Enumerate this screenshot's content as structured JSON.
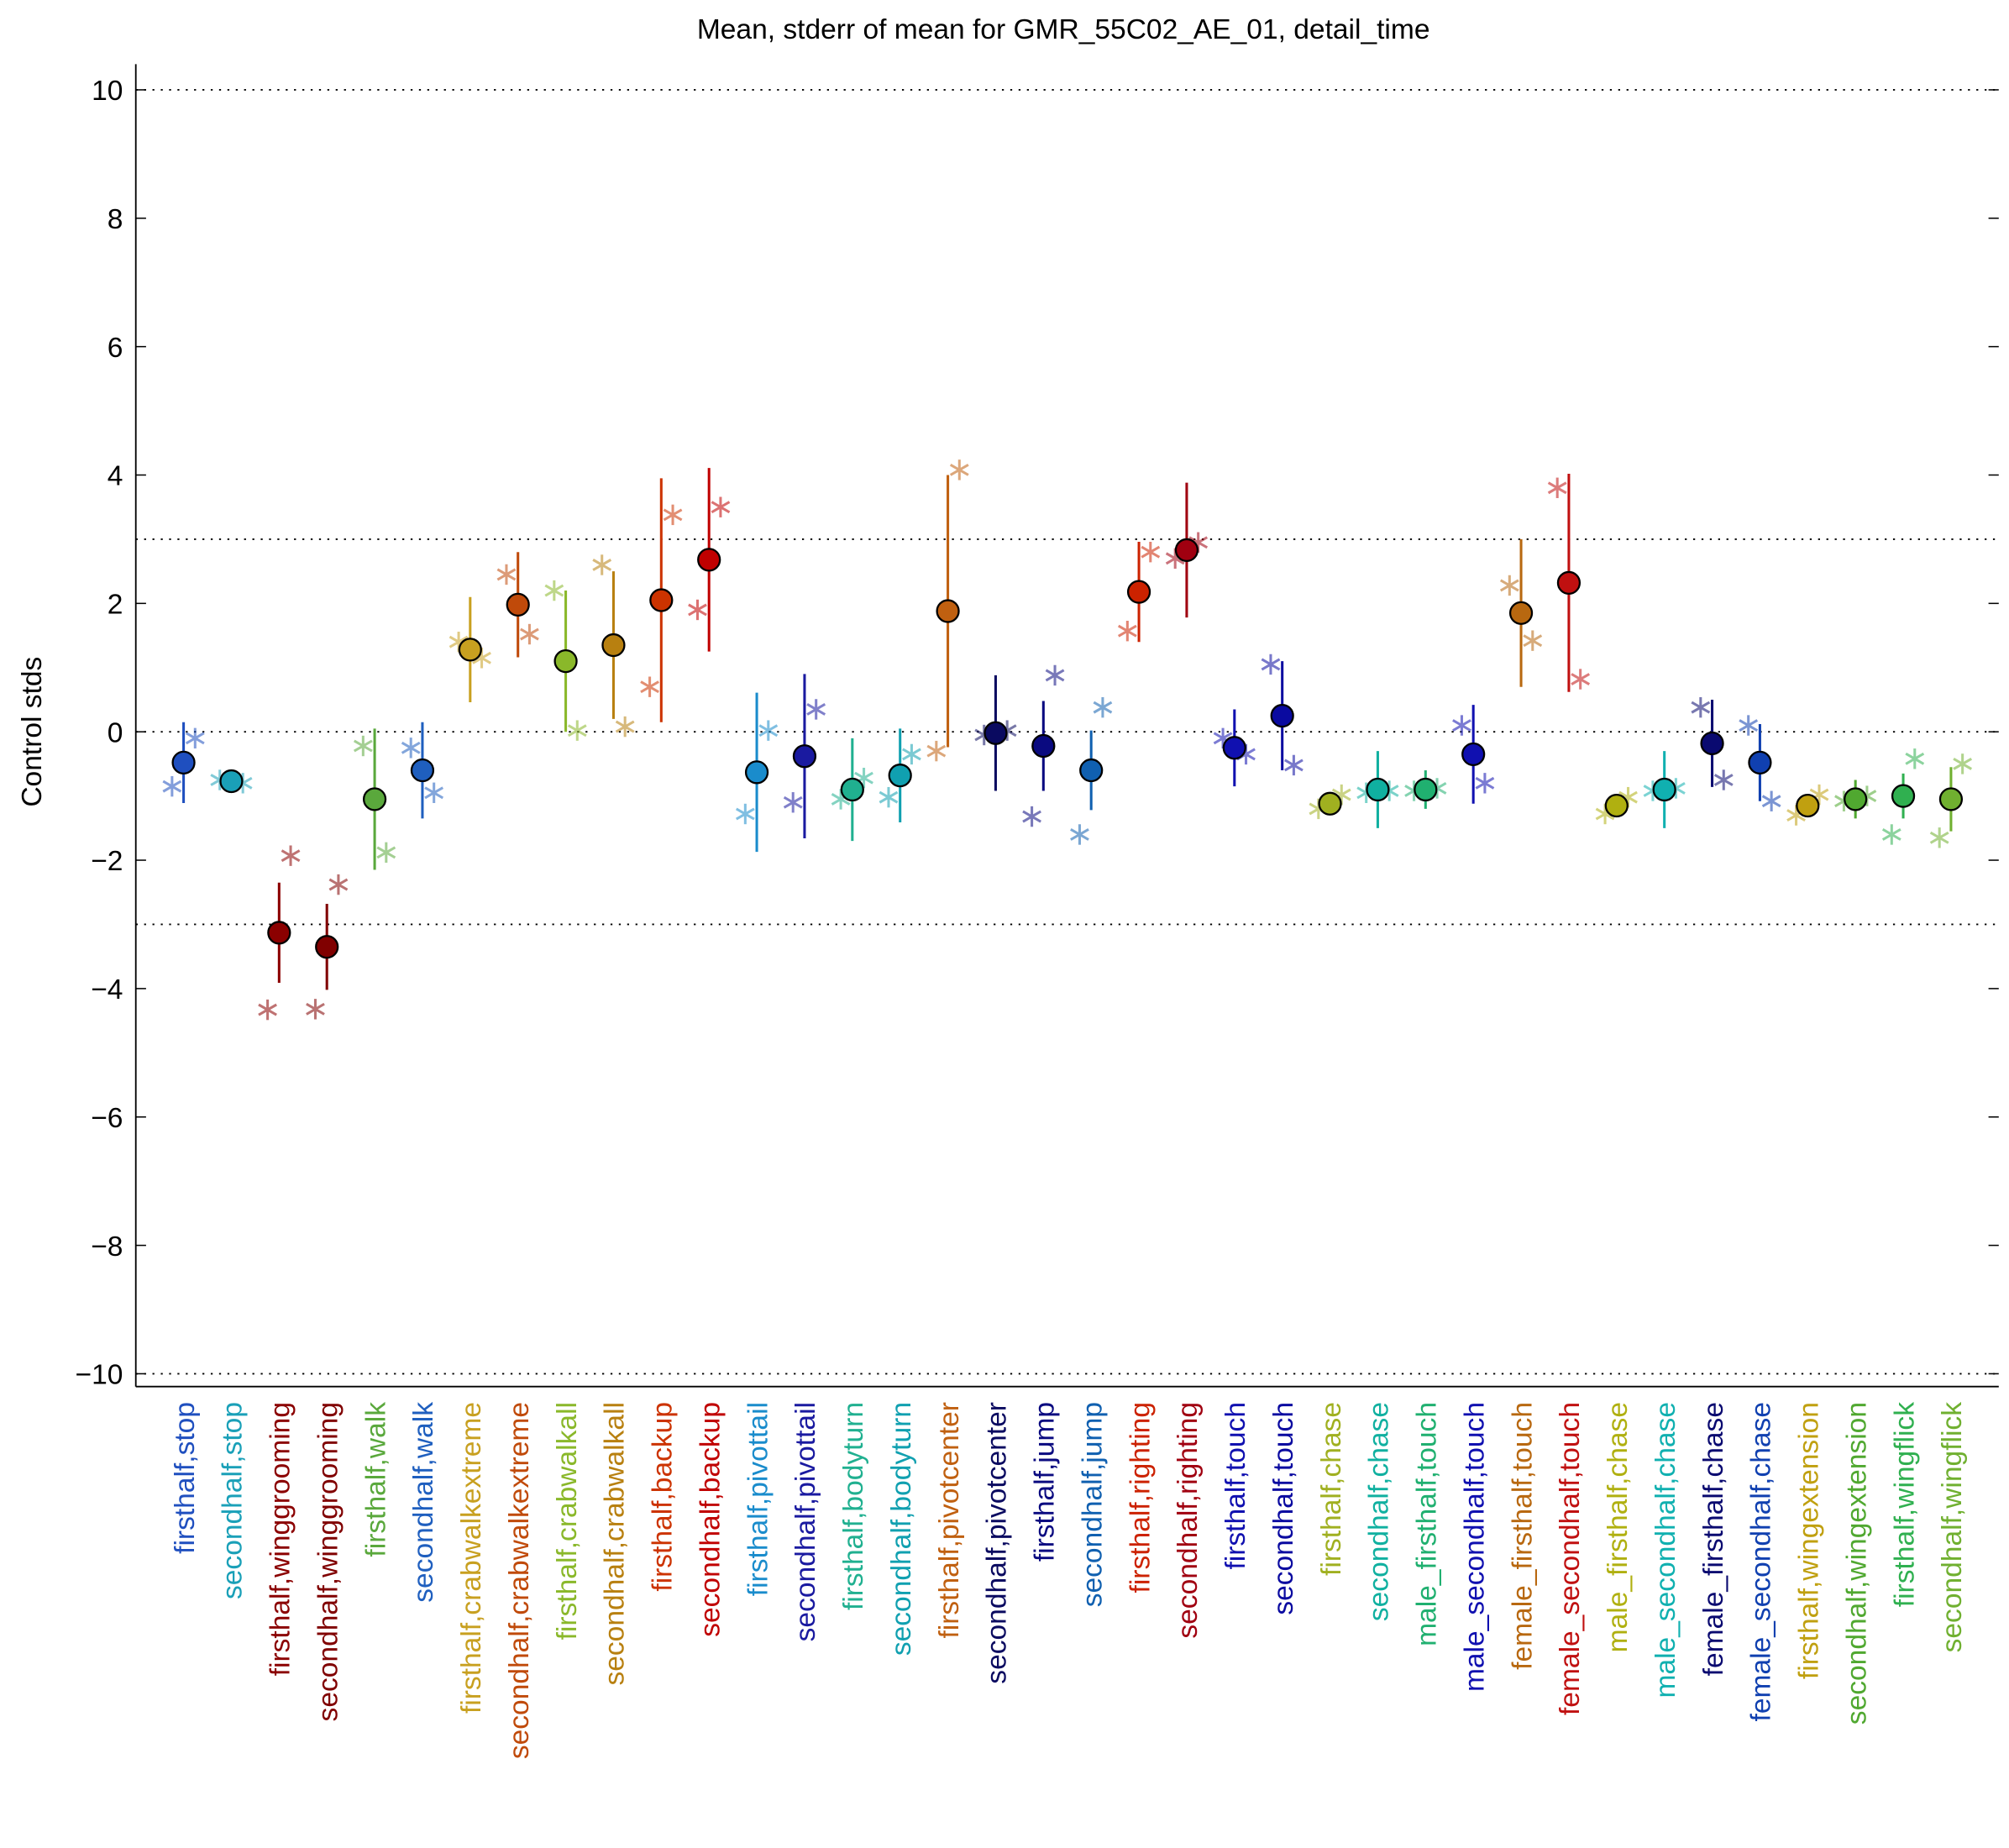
{
  "chart_data": {
    "type": "errorbar",
    "title": "Mean, stderr of mean for GMR_55C02_AE_01, detail_time",
    "y_label": "Control stds",
    "categories": [
      "firsthalf,stop",
      "secondhalf,stop",
      "firsthalf,winggrooming",
      "secondhalf,winggrooming",
      "firsthalf,walk",
      "secondhalf,walk",
      "firsthalf,crabwalkextreme",
      "secondhalf,crabwalkextreme",
      "firsthalf,crabwalkall",
      "secondhalf,crabwalkall",
      "firsthalf,backup",
      "secondhalf,backup",
      "firsthalf,pivottail",
      "secondhalf,pivottail",
      "firsthalf,bodyturn",
      "secondhalf,bodyturn",
      "firsthalf,pivotcenter",
      "secondhalf,pivotcenter",
      "firsthalf,jump",
      "secondhalf,jump",
      "firsthalf,righting",
      "secondhalf,righting",
      "firsthalf,touch",
      "secondhalf,touch",
      "firsthalf,chase",
      "secondhalf,chase",
      "male_firsthalf,touch",
      "male_secondhalf,touch",
      "female_firsthalf,touch",
      "female_secondhalf,touch",
      "male_firsthalf,chase",
      "male_secondhalf,chase",
      "female_firsthalf,chase",
      "female_secondhalf,chase",
      "firsthalf,wingextension",
      "secondhalf,wingextension",
      "firsthalf,wingflick",
      "secondhalf,wingflick"
    ],
    "values": [
      -0.48,
      -0.77,
      -3.13,
      -3.35,
      -1.05,
      -0.6,
      1.28,
      1.98,
      1.1,
      1.35,
      2.05,
      2.68,
      -0.63,
      -0.38,
      -0.9,
      -0.68,
      1.88,
      -0.02,
      -0.22,
      -0.6,
      2.18,
      2.83,
      -0.25,
      0.25,
      -1.12,
      -0.9,
      -0.9,
      -0.35,
      1.85,
      2.32,
      -1.15,
      -0.9,
      -0.18,
      -0.48,
      -1.15,
      -1.05,
      -1.0,
      -1.05
    ],
    "errors": [
      0.63,
      0.15,
      0.78,
      0.67,
      1.1,
      0.75,
      0.82,
      0.82,
      1.1,
      1.15,
      1.9,
      1.43,
      1.24,
      1.28,
      0.8,
      0.73,
      2.12,
      0.9,
      0.7,
      0.62,
      0.78,
      1.05,
      0.6,
      0.85,
      0.1,
      0.6,
      0.3,
      0.77,
      1.15,
      1.7,
      0.1,
      0.6,
      0.68,
      0.6,
      0.08,
      0.3,
      0.35,
      0.5
    ],
    "colors": [
      "#1f4fbf",
      "#1aa0b8",
      "#8b0000",
      "#800000",
      "#5aa83c",
      "#1f5fbf",
      "#c8a020",
      "#c04a0a",
      "#8ab82a",
      "#b88010",
      "#cc3300",
      "#c00000",
      "#1a8ccc",
      "#1a1aa0",
      "#20b090",
      "#10a0b0",
      "#c06010",
      "#0a0a60",
      "#0a0a80",
      "#1060b0",
      "#cc2200",
      "#a00010",
      "#1010b0",
      "#0a0aa0",
      "#a0b020",
      "#10b0a0",
      "#20b070",
      "#1010b0",
      "#b86810",
      "#c01010",
      "#b0b010",
      "#10b0b0",
      "#0a0a70",
      "#1040b0",
      "#c0a010",
      "#50a830",
      "#30b050",
      "#70b030"
    ],
    "experiments": [
      {
        "values": [
          -0.85,
          -0.75,
          -4.33,
          -4.32,
          -0.22,
          -0.25,
          1.4,
          2.45,
          2.2,
          2.6,
          0.7,
          1.9,
          -1.28,
          -1.1,
          -1.05,
          -1.02,
          -0.3,
          -0.05,
          -1.32,
          -1.6,
          1.57,
          2.7,
          -0.1,
          1.05,
          -1.2,
          -0.95,
          -0.92,
          0.1,
          2.28,
          3.8,
          -1.28,
          -0.92,
          0.38,
          0.1,
          -1.3,
          -1.08,
          -1.6,
          -1.65
        ]
      },
      {
        "values": [
          -0.1,
          -0.8,
          -1.93,
          -2.38,
          -1.88,
          -0.95,
          1.15,
          1.52,
          0.02,
          0.08,
          3.38,
          3.5,
          0.02,
          0.35,
          -0.72,
          -0.35,
          4.08,
          0.02,
          0.88,
          0.38,
          2.8,
          2.95,
          -0.35,
          -0.52,
          -0.98,
          -0.92,
          -0.88,
          -0.8,
          1.42,
          0.82,
          -1.02,
          -0.88,
          -0.75,
          -1.08,
          -0.98,
          -1.0,
          -0.42,
          -0.5
        ]
      }
    ],
    "ylim": [
      -10.2,
      10.4
    ],
    "yticks": [
      {
        "value": -10,
        "label": "−10"
      },
      {
        "value": -8,
        "label": "−8"
      },
      {
        "value": -6,
        "label": "−6"
      },
      {
        "value": -4,
        "label": "−4"
      },
      {
        "value": -2,
        "label": "−2"
      },
      0,
      2,
      4,
      6,
      8,
      10
    ],
    "hlines": [
      -10,
      -3,
      0,
      3,
      10
    ]
  }
}
